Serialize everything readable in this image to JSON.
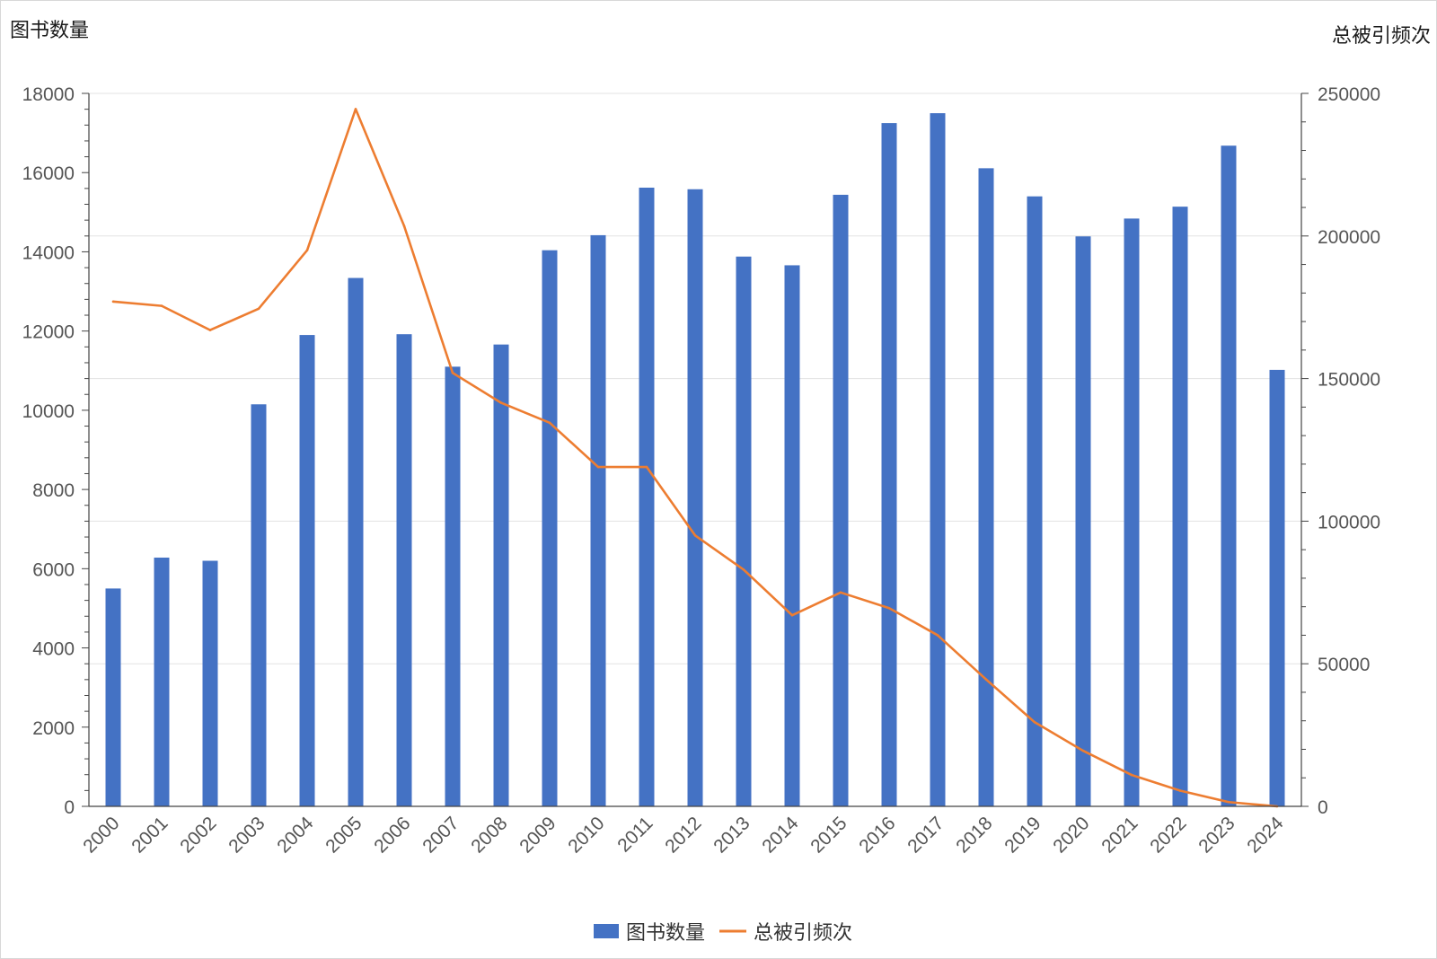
{
  "chart_data": {
    "type": "bar",
    "categories": [
      "2000",
      "2001",
      "2002",
      "2003",
      "2004",
      "2005",
      "2006",
      "2007",
      "2008",
      "2009",
      "2010",
      "2011",
      "2012",
      "2013",
      "2014",
      "2015",
      "2016",
      "2017",
      "2018",
      "2019",
      "2020",
      "2021",
      "2022",
      "2023",
      "2024"
    ],
    "left_axis": {
      "label": "图书数量",
      "min": 0,
      "max": 18000,
      "ticks": [
        0,
        2000,
        4000,
        6000,
        8000,
        10000,
        12000,
        14000,
        16000,
        18000
      ]
    },
    "right_axis": {
      "label": "总被引频次",
      "min": 0,
      "max": 250000,
      "ticks": [
        0,
        50000,
        100000,
        150000,
        200000,
        250000
      ]
    },
    "series": [
      {
        "name": "图书数量",
        "type": "bar",
        "axis": "left",
        "color": "#4472C4",
        "values": [
          5500,
          6280,
          6200,
          10150,
          11900,
          13340,
          11920,
          11100,
          11660,
          14040,
          14420,
          15620,
          15580,
          13880,
          13660,
          15440,
          17250,
          17500,
          16110,
          15400,
          14390,
          14840,
          15140,
          16680,
          11020
        ]
      },
      {
        "name": "总被引频次",
        "type": "line",
        "axis": "right",
        "color": "#ED7D31",
        "values": [
          177000,
          175500,
          167000,
          174500,
          195000,
          244500,
          203500,
          152000,
          141500,
          134500,
          119000,
          119000,
          95000,
          83000,
          67000,
          75000,
          69500,
          60000,
          44500,
          29500,
          19500,
          11000,
          5500,
          1500,
          0
        ]
      }
    ],
    "grid": true,
    "legend": "bottom-center"
  }
}
